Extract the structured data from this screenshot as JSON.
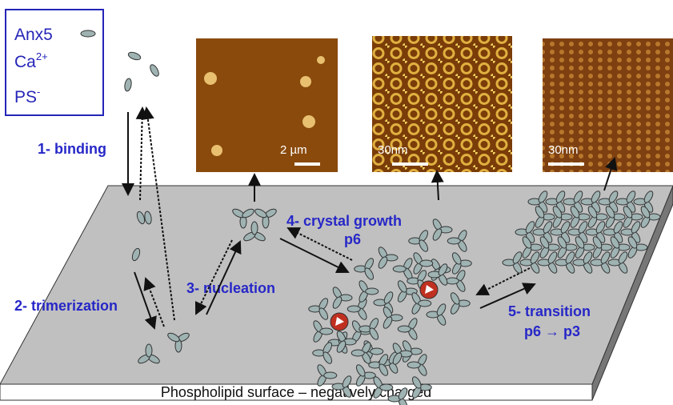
{
  "legend": {
    "items": [
      {
        "text": "Anx5"
      },
      {
        "text": "Ca",
        "sup": "2+"
      },
      {
        "text": "PS",
        "sup": "-"
      }
    ]
  },
  "steps": {
    "binding": "1- binding",
    "trimerization": "2- trimerization",
    "nucleation": "3- nucleation",
    "growth": {
      "title": "4- crystal growth",
      "symmetry": "p6"
    },
    "transition": {
      "title": "5- transition",
      "symmetry": "p6 → p3"
    }
  },
  "images": [
    {
      "scale": "2 µm"
    },
    {
      "scale": "30nm"
    },
    {
      "scale": "30nm"
    }
  ],
  "surface": {
    "label": "Phospholipid surface – negatively charged"
  }
}
